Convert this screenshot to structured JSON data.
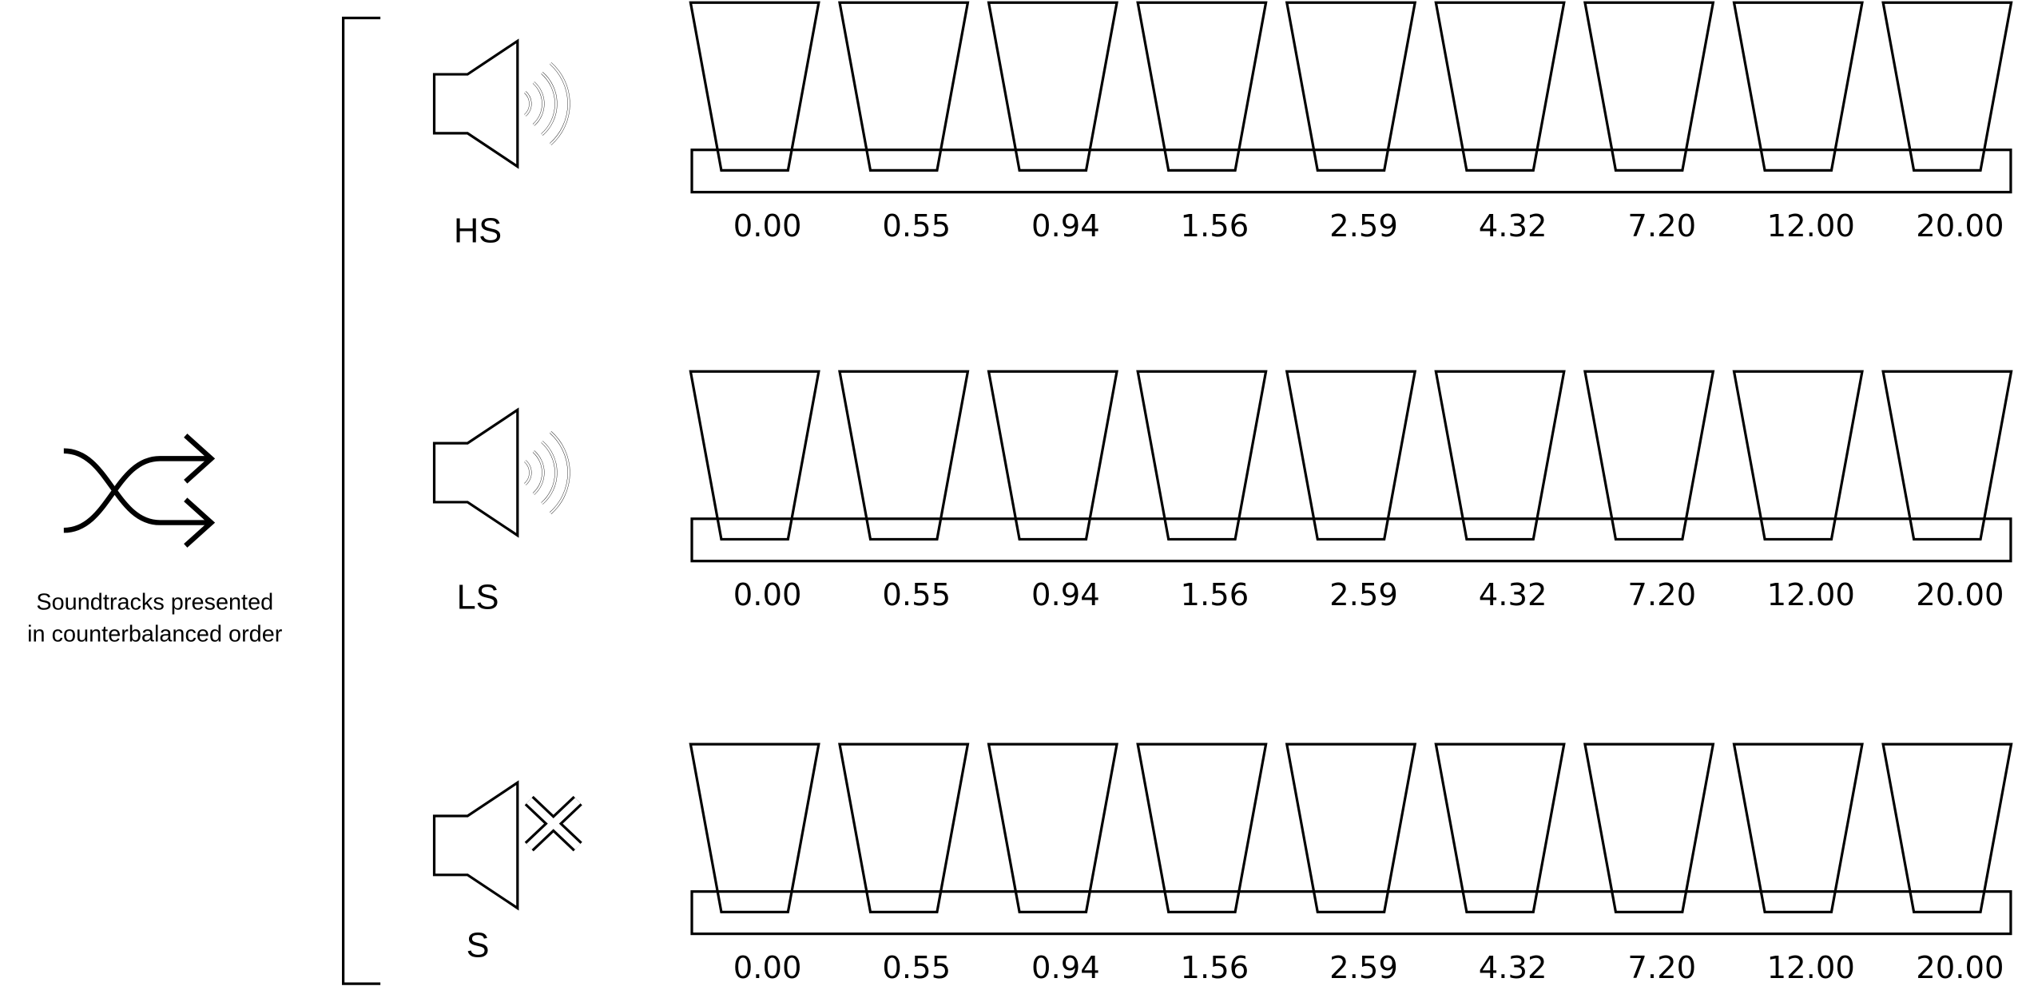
{
  "caption": [
    "Soundtracks presented",
    "in counterbalanced order"
  ],
  "rows": [
    {
      "label": "HS",
      "cups": [
        "0.00",
        "0.55",
        "0.94",
        "1.56",
        "2.59",
        "4.32",
        "7.20",
        "12.00",
        "20.00"
      ]
    },
    {
      "label": "LS",
      "cups": [
        "0.00",
        "0.55",
        "0.94",
        "1.56",
        "2.59",
        "4.32",
        "7.20",
        "12.00",
        "20.00"
      ]
    },
    {
      "label": "S",
      "cups": [
        "0.00",
        "0.55",
        "0.94",
        "1.56",
        "2.59",
        "4.32",
        "7.20",
        "12.00",
        "20.00"
      ]
    }
  ]
}
